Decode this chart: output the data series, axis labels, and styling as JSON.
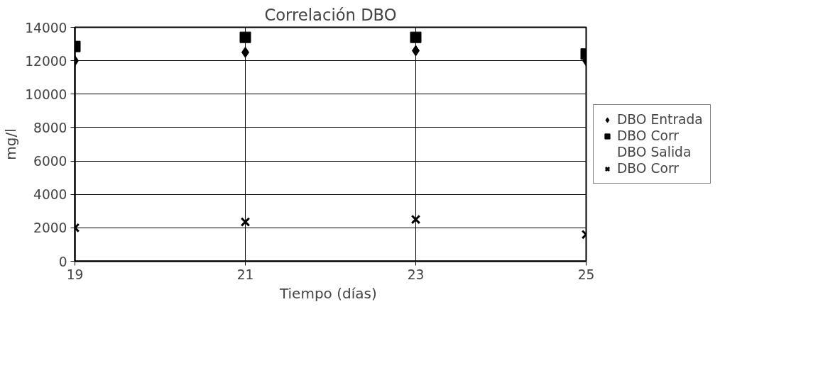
{
  "chart_data": {
    "type": "scatter",
    "title": "Correlación DBO",
    "xlabel": "Tiempo  (días)",
    "ylabel": "mg/l",
    "x": [
      19,
      21,
      23,
      25
    ],
    "series": [
      {
        "name": "DBO Entrada",
        "color": "#000000",
        "marker": "diamond",
        "values": [
          12000,
          12500,
          12600,
          12000
        ]
      },
      {
        "name": "DBO Corr",
        "color": "#000000",
        "marker": "square",
        "values": [
          12850,
          13400,
          13400,
          12400
        ]
      },
      {
        "name": "DBO Salida",
        "marker": "none",
        "values": [
          null,
          null,
          null,
          null
        ]
      },
      {
        "name": "DBO Corr",
        "color": "#000000",
        "marker": "cross",
        "values": [
          2000,
          2350,
          2500,
          1600
        ]
      }
    ],
    "xlim": [
      19,
      25
    ],
    "xticks": [
      19,
      21,
      23,
      25
    ],
    "ylim": [
      0,
      14000
    ],
    "yticks": [
      0,
      2000,
      4000,
      6000,
      8000,
      10000,
      12000,
      14000
    ],
    "grid": true,
    "legend": "right"
  }
}
